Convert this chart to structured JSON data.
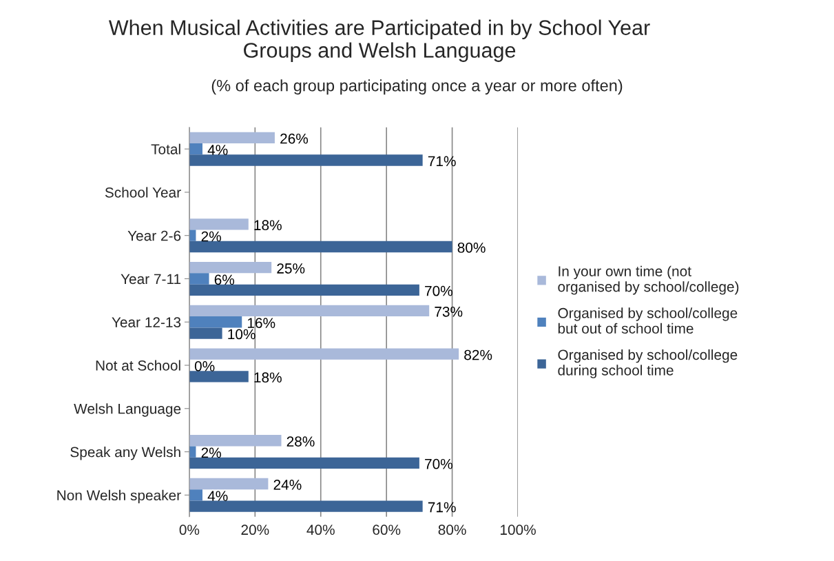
{
  "chart_data": {
    "type": "bar",
    "orientation": "horizontal",
    "title": "When Musical Activities are Participated in by School Year\nGroups and Welsh Language",
    "subtitle": "(% of each group participating once a year or more often)",
    "categories": [
      "Total",
      "School Year",
      "Year 2-6",
      "Year 7-11",
      "Year 12-13",
      "Not at School",
      "Welsh Language",
      "Speak any Welsh",
      "Non Welsh speaker"
    ],
    "series": [
      {
        "name": "In your own time (not\norganised by school/college)",
        "color": "#a9b9da",
        "values": [
          26,
          null,
          18,
          25,
          73,
          82,
          null,
          28,
          24
        ],
        "value_labels": [
          "26%",
          null,
          "18%",
          "25%",
          "73%",
          "82%",
          null,
          "28%",
          "24%"
        ]
      },
      {
        "name": "Organised by school/college\nbut out of school time",
        "color": "#4f81bd",
        "values": [
          4,
          null,
          2,
          6,
          16,
          0,
          null,
          2,
          4
        ],
        "value_labels": [
          "4%",
          null,
          "2%",
          "6%",
          "16%",
          "0%",
          null,
          "2%",
          "4%"
        ]
      },
      {
        "name": "Organised by school/college\nduring school time",
        "color": "#3c6597",
        "values": [
          71,
          null,
          80,
          70,
          10,
          18,
          null,
          70,
          71
        ],
        "value_labels": [
          "71%",
          null,
          "80%",
          "70%",
          "10%",
          "18%",
          null,
          "70%",
          "71%"
        ]
      }
    ],
    "xlim": [
      0,
      100
    ],
    "xticks": [
      {
        "value": 0,
        "label": "0%"
      },
      {
        "value": 20,
        "label": "20%"
      },
      {
        "value": 40,
        "label": "40%"
      },
      {
        "value": 60,
        "label": "60%"
      },
      {
        "value": 80,
        "label": "80%"
      },
      {
        "value": 100,
        "label": "100%"
      }
    ],
    "grid": "x",
    "legend": "right"
  }
}
